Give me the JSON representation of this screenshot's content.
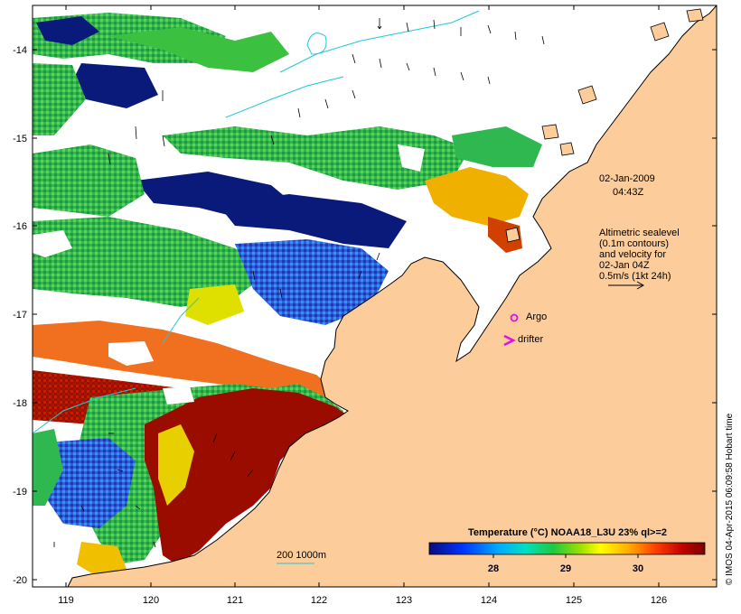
{
  "map": {
    "lon_ticks": [
      "119",
      "120",
      "121",
      "122",
      "123",
      "124",
      "125",
      "126"
    ],
    "lat_ticks": [
      "-14",
      "-15",
      "-16",
      "-17",
      "-18",
      "-19",
      "-20"
    ]
  },
  "annotations": {
    "date": "02-Jan-2009",
    "time": "04:43Z",
    "altimetry_lines": [
      "Altimetric sealevel",
      "(0.1m contours)",
      "and velocity for",
      "02-Jan 04Z",
      "0.5m/s (1kt 24h)"
    ],
    "argo_label": "Argo",
    "drifter_label": "drifter",
    "bathymetry_label": "200  1000m"
  },
  "colorbar": {
    "title": "Temperature (°C) NOAA18_L3U 23% ql>=2",
    "ticks": [
      "28",
      "29",
      "30"
    ]
  },
  "credit": "© IMOS 04-Apr-2015 06:09:58 Hobart time",
  "colors": {
    "land": "#fccc9a",
    "sea_cold": "#0a1a7a",
    "sea_warm": "#9a0c00",
    "marker": "#e010e0",
    "contour": "#20c8d8"
  }
}
